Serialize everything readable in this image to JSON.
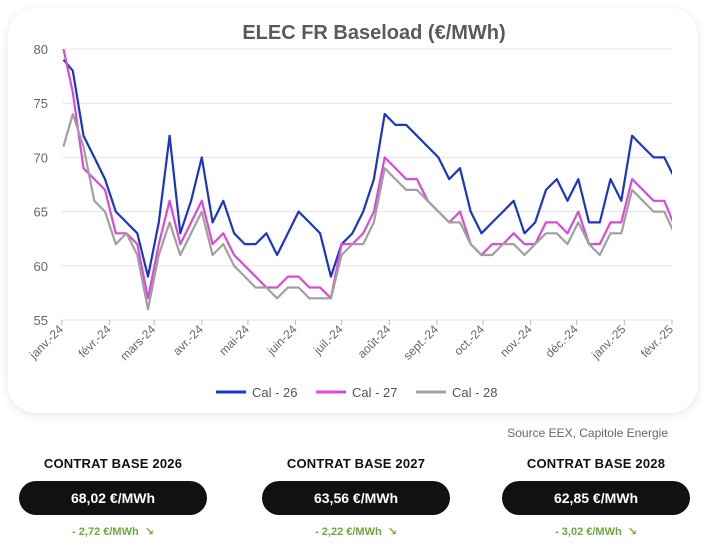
{
  "chart_data": {
    "type": "line",
    "title": "ELEC FR Baseload (€/MWh)",
    "ylim": [
      55,
      80
    ],
    "yticks": [
      55,
      60,
      65,
      70,
      75,
      80
    ],
    "grid": true,
    "legend_position": "bottom",
    "xticks": [
      "janv.-24",
      "févr.-24",
      "mars-24",
      "avr.-24",
      "mai-24",
      "juin-24",
      "juil.-24",
      "août-24",
      "sept.-24",
      "oct.-24",
      "nov.-24",
      "déc.-24",
      "janv.-25",
      "févr.-25"
    ],
    "x": [
      "2024-01-02",
      "2024-01-08",
      "2024-01-15",
      "2024-01-22",
      "2024-01-29",
      "2024-02-05",
      "2024-02-12",
      "2024-02-19",
      "2024-02-26",
      "2024-03-04",
      "2024-03-11",
      "2024-03-18",
      "2024-03-25",
      "2024-04-01",
      "2024-04-08",
      "2024-04-15",
      "2024-04-22",
      "2024-04-29",
      "2024-05-06",
      "2024-05-13",
      "2024-05-20",
      "2024-05-27",
      "2024-06-03",
      "2024-06-10",
      "2024-06-17",
      "2024-06-24",
      "2024-07-01",
      "2024-07-08",
      "2024-07-15",
      "2024-07-22",
      "2024-07-29",
      "2024-08-05",
      "2024-08-12",
      "2024-08-19",
      "2024-08-26",
      "2024-09-02",
      "2024-09-09",
      "2024-09-16",
      "2024-09-23",
      "2024-09-30",
      "2024-10-07",
      "2024-10-14",
      "2024-10-21",
      "2024-10-28",
      "2024-11-04",
      "2024-11-11",
      "2024-11-18",
      "2024-11-25",
      "2024-12-02",
      "2024-12-09",
      "2024-12-16",
      "2024-12-23",
      "2024-12-30",
      "2025-01-06",
      "2025-01-13",
      "2025-01-20",
      "2025-01-27",
      "2025-02-03"
    ],
    "series": [
      {
        "name": "Cal - 26",
        "color": "#1a35c8",
        "values": [
          79,
          78,
          72,
          70,
          68,
          65,
          64,
          63,
          59,
          64,
          72,
          63,
          66,
          70,
          64,
          66,
          63,
          62,
          62,
          63,
          61,
          63,
          65,
          64,
          63,
          59,
          62,
          63,
          65,
          68,
          74,
          73,
          73,
          72,
          71,
          70,
          68,
          69,
          65,
          63,
          64,
          65,
          66,
          63,
          64,
          67,
          68,
          66,
          68,
          64,
          64,
          68,
          66,
          72,
          71,
          70,
          70,
          68
        ]
      },
      {
        "name": "Cal - 27",
        "color": "#d94ad6",
        "values": [
          80,
          76,
          69,
          68,
          67,
          63,
          63,
          62,
          57,
          62,
          66,
          62,
          64,
          66,
          62,
          63,
          61,
          60,
          59,
          58,
          58,
          59,
          59,
          58,
          58,
          57,
          62,
          62,
          63,
          65,
          70,
          69,
          68,
          68,
          66,
          65,
          64,
          65,
          62,
          61,
          62,
          62,
          63,
          62,
          62,
          64,
          64,
          63,
          65,
          62,
          62,
          64,
          64,
          68,
          67,
          66,
          66,
          63.56
        ]
      },
      {
        "name": "Cal - 28",
        "color": "#a0a0a0",
        "values": [
          71,
          74,
          71,
          66,
          65,
          62,
          63,
          61,
          56,
          61,
          64,
          61,
          63,
          65,
          61,
          62,
          60,
          59,
          58,
          58,
          57,
          58,
          58,
          57,
          57,
          57,
          61,
          62,
          62,
          64,
          69,
          68,
          67,
          67,
          66,
          65,
          64,
          64,
          62,
          61,
          61,
          62,
          62,
          61,
          62,
          63,
          63,
          62,
          64,
          62,
          61,
          63,
          63,
          67,
          66,
          65,
          65,
          62.85
        ]
      }
    ]
  },
  "source_text": "Source EEX, Capitole Energie",
  "contracts": [
    {
      "title": "CONTRAT BASE 2026",
      "price": "68,02 €/MWh",
      "change": "- 2,72 €/MWh",
      "change_color": "#6aaa3a"
    },
    {
      "title": "CONTRAT BASE 2027",
      "price": "63,56 €/MWh",
      "change": "- 2,22 €/MWh",
      "change_color": "#6aaa3a"
    },
    {
      "title": "CONTRAT BASE 2028",
      "price": "62,85 €/MWh",
      "change": "- 3,02 €/MWh",
      "change_color": "#6aaa3a"
    }
  ]
}
